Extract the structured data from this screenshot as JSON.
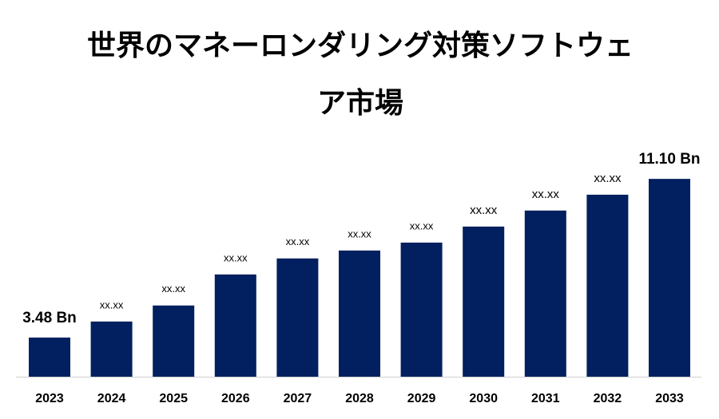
{
  "chart_data": {
    "type": "bar",
    "title": "世界のマネーロンダリング対策ソフトウェア市場",
    "categories": [
      "2023",
      "2024",
      "2025",
      "2026",
      "2027",
      "2028",
      "2029",
      "2030",
      "2031",
      "2032",
      "2033"
    ],
    "values": [
      3.48,
      4.25,
      5.02,
      6.51,
      7.28,
      7.66,
      8.04,
      8.81,
      9.58,
      10.34,
      11.1
    ],
    "value_labels": [
      "3.48 Bn",
      "xx.xx",
      "xx.xx",
      "xx.xx",
      "xx.xx",
      "xx.xx",
      "xx.xx",
      "xx.xx",
      "xx.xx",
      "xx.xx",
      "11.10 Bn"
    ],
    "color": "#02205f",
    "ylim": [
      1.6,
      12.6
    ]
  }
}
